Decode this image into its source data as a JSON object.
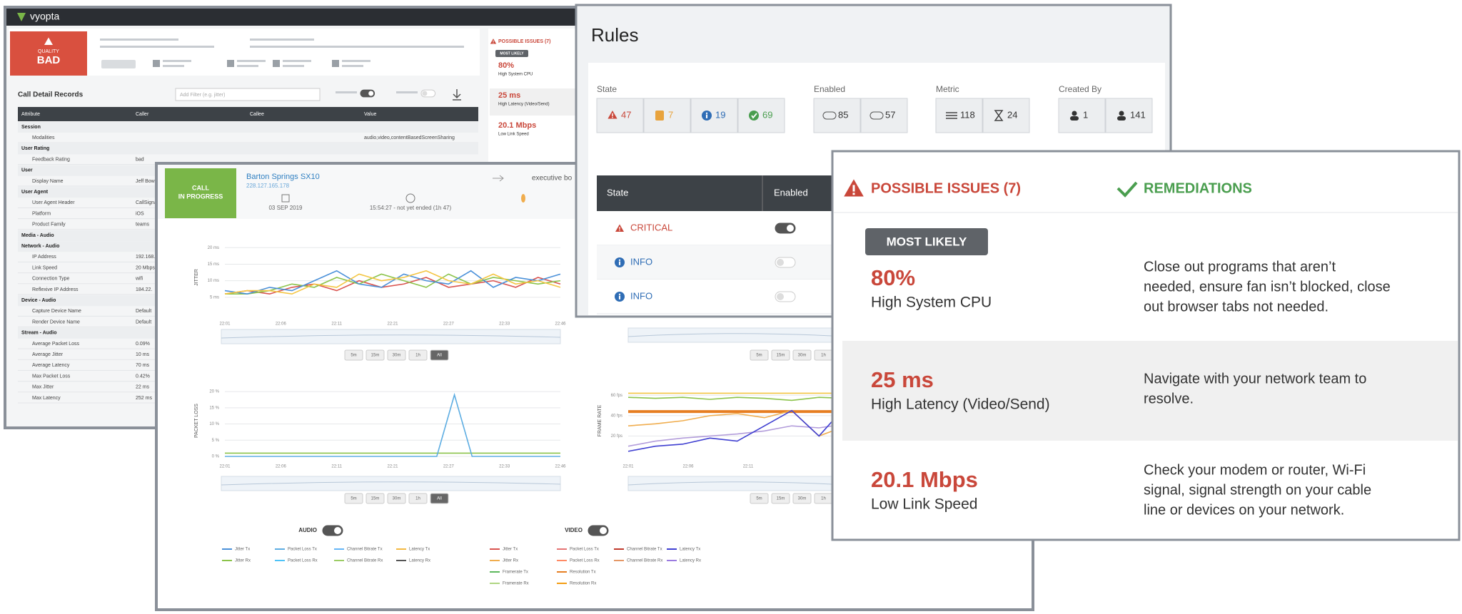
{
  "app": {
    "brand": "vyopta"
  },
  "quality": {
    "label": "QUALITY",
    "value": "BAD"
  },
  "call_detail": {
    "title": "Call Detail Records",
    "filter": "Add Filter (e.g. jitter)",
    "columns": [
      "Attribute",
      "Caller",
      "Callee",
      "Value"
    ],
    "sections": [
      {
        "name": "Session",
        "rows": [
          {
            "attr": "Modalities",
            "value": "audio,video,contentBasedScreenSharing"
          }
        ]
      },
      {
        "name": "User Rating",
        "rows": [
          {
            "attr": "Feedback Rating",
            "caller": "bad"
          }
        ]
      },
      {
        "name": "User",
        "rows": [
          {
            "attr": "Display Name",
            "caller": "Jeff Bow"
          }
        ]
      },
      {
        "name": "User Agent",
        "rows": [
          {
            "attr": "User Agent Header",
            "caller": "CallSignal"
          },
          {
            "attr": "Platform",
            "caller": "iOS"
          },
          {
            "attr": "Product Family",
            "caller": "teams"
          }
        ]
      },
      {
        "name": "Media - Audio",
        "rows": []
      },
      {
        "name": "Network - Audio",
        "rows": [
          {
            "attr": "IP Address",
            "caller": "192.168."
          },
          {
            "attr": "Link Speed",
            "caller": "20 Mbps"
          },
          {
            "attr": "Connection Type",
            "caller": "wifi"
          },
          {
            "attr": "Reflexive IP Address",
            "caller": "184.22."
          }
        ]
      },
      {
        "name": "Device - Audio",
        "rows": [
          {
            "attr": "Capture Device Name",
            "caller": "Default"
          },
          {
            "attr": "Render Device Name",
            "caller": "Default"
          }
        ]
      },
      {
        "name": "Stream - Audio",
        "rows": [
          {
            "attr": "Average Packet Loss",
            "caller": "0.09%"
          },
          {
            "attr": "Average Jitter",
            "caller": "10 ms"
          },
          {
            "attr": "Average Latency",
            "caller": "70 ms"
          },
          {
            "attr": "Max Packet Loss",
            "caller": "0.42%"
          },
          {
            "attr": "Max Jitter",
            "caller": "22 ms"
          },
          {
            "attr": "Max Latency",
            "caller": "252 ms"
          }
        ]
      }
    ]
  },
  "call": {
    "status": [
      "CALL",
      "IN PROGRESS"
    ],
    "room": "Barton Springs SX10",
    "ip": "228.127.165.178",
    "date": "03 SEP 2019",
    "time": "15:54:27 - not yet ended (1h 47)",
    "participant": "executive bo"
  },
  "ranges": [
    "5m",
    "15m",
    "30m",
    "1h",
    "All"
  ],
  "charts": [
    {
      "y_label": "JITTER",
      "ylim": [
        0,
        22
      ],
      "yticks": [
        {
          "value": 5,
          "label": "5 ms"
        },
        {
          "value": 10,
          "label": "10 ms"
        },
        {
          "value": 15,
          "label": "15 ms"
        },
        {
          "value": 20,
          "label": "20 ms"
        }
      ],
      "xlabels": [
        "22:01",
        "22:06",
        "22:11",
        "22:21",
        "22:27",
        "22:33",
        "22:46"
      ],
      "series": [
        {
          "color": "#d9534f",
          "values": [
            6,
            7,
            6,
            8,
            9,
            7,
            10,
            8,
            9,
            11,
            8,
            9,
            10,
            8,
            11,
            9
          ]
        },
        {
          "color": "#8bc34a",
          "values": [
            6,
            6,
            7,
            9,
            8,
            11,
            9,
            12,
            10,
            8,
            12,
            9,
            11,
            10,
            9,
            10
          ]
        },
        {
          "color": "#4a90d9",
          "values": [
            7,
            6,
            8,
            7,
            10,
            13,
            9,
            8,
            12,
            10,
            9,
            13,
            8,
            11,
            10,
            12
          ]
        },
        {
          "color": "#f4c542",
          "values": [
            6,
            7,
            7,
            6,
            9,
            8,
            12,
            10,
            11,
            13,
            10,
            9,
            12,
            9,
            10,
            8
          ]
        }
      ]
    },
    {
      "y_label": "PACKET LOSS",
      "ylim": [
        0,
        22
      ],
      "yticks": [
        {
          "value": 0,
          "label": "0 %"
        },
        {
          "value": 5,
          "label": "5 %"
        },
        {
          "value": 10,
          "label": "10 %"
        },
        {
          "value": 15,
          "label": "15 %"
        },
        {
          "value": 20,
          "label": "20 %"
        }
      ],
      "xlabels": [
        "22:01",
        "22:06",
        "22:11",
        "22:21",
        "22:27",
        "22:33",
        "22:46"
      ],
      "series": [
        {
          "color": "#8bc34a",
          "values": [
            1,
            1,
            1,
            1,
            1,
            1,
            1,
            1,
            1,
            1
          ]
        },
        {
          "color": "#5dade2",
          "values": [
            0,
            0,
            0,
            0,
            0,
            0,
            0,
            0,
            0,
            0,
            0,
            0,
            0,
            19,
            0,
            0,
            0,
            0,
            0,
            0
          ]
        }
      ]
    },
    {
      "y_label": "FRAME RATE",
      "ylim": [
        0,
        70
      ],
      "yticks": [
        {
          "value": 20,
          "label": "20 fps"
        },
        {
          "value": 40,
          "label": "40 fps"
        },
        {
          "value": 60,
          "label": "60 fps"
        }
      ],
      "xlabels": [
        "22:01",
        "22:06",
        "22:11"
      ],
      "series": [
        {
          "color": "#f4c542",
          "values": [
            62,
            62,
            62,
            62,
            62,
            62,
            62,
            62,
            62,
            62,
            62,
            62
          ]
        },
        {
          "color": "#8bc34a",
          "values": [
            58,
            57,
            58,
            56,
            58,
            57,
            55,
            58,
            57,
            56,
            55,
            57
          ]
        },
        {
          "color": "#e67e22",
          "values": [
            44,
            44,
            44,
            44,
            44,
            44,
            44,
            44,
            44,
            44,
            44,
            44
          ]
        },
        {
          "color": "#f0ad4e",
          "values": [
            30,
            32,
            35,
            40,
            42,
            38,
            45,
            20,
            30,
            40,
            50,
            52
          ]
        },
        {
          "color": "#b39ddb",
          "values": [
            10,
            15,
            18,
            20,
            22,
            25,
            30,
            28,
            32,
            35,
            38,
            40
          ]
        },
        {
          "color": "#3f3fd1",
          "values": [
            5,
            10,
            12,
            18,
            15,
            30,
            45,
            20,
            50,
            40,
            35,
            48
          ]
        }
      ]
    }
  ],
  "toggles": [
    "AUDIO",
    "VIDEO"
  ],
  "legends": {
    "audio": [
      [
        {
          "name": "Jitter Tx",
          "color": "#4a90d9"
        },
        {
          "name": "Jitter Rx",
          "color": "#8bc34a"
        }
      ],
      [
        {
          "name": "Packet Loss Tx",
          "color": "#5dade2"
        },
        {
          "name": "Packet Loss Rx",
          "color": "#4fc3f7"
        }
      ],
      [
        {
          "name": "Channel Bitrate Tx",
          "color": "#64b5f6"
        },
        {
          "name": "Channel Bitrate Rx",
          "color": "#9ccc65"
        }
      ],
      [
        {
          "name": "Latency Tx",
          "color": "#f4b942"
        },
        {
          "name": "Latency Rx",
          "color": "#555555"
        }
      ]
    ],
    "video": [
      [
        {
          "name": "Jitter Tx",
          "color": "#d9534f"
        },
        {
          "name": "Jitter Rx",
          "color": "#f0ad4e"
        },
        {
          "name": "Framerate Tx",
          "color": "#5cb85c"
        },
        {
          "name": "Framerate Rx",
          "color": "#aed581"
        }
      ],
      [
        {
          "name": "Packet Loss Tx",
          "color": "#e57373"
        },
        {
          "name": "Packet Loss Rx",
          "color": "#ff8a65"
        },
        {
          "name": "Resolution Tx",
          "color": "#e67e22"
        },
        {
          "name": "Resolution Rx",
          "color": "#f39c12"
        }
      ],
      [
        {
          "name": "Channel Bitrate Tx",
          "color": "#c0392b"
        },
        {
          "name": "Channel Bitrate Rx",
          "color": "#e59866"
        }
      ],
      [
        {
          "name": "Latency Tx",
          "color": "#3f3fd1"
        },
        {
          "name": "Latency Rx",
          "color": "#9b7be0"
        }
      ]
    ]
  },
  "rules": {
    "title": "Rules",
    "filters": [
      {
        "label": "State",
        "items": [
          {
            "count": 47,
            "color": "#c9473a"
          },
          {
            "count": 7,
            "color": "#e8a33d"
          },
          {
            "count": 19,
            "color": "#2f6db5"
          },
          {
            "count": 69,
            "color": "#4a9e4f"
          }
        ]
      },
      {
        "label": "Enabled",
        "items": [
          {
            "count": 85,
            "color": "#333333"
          },
          {
            "count": 57,
            "color": "#333333"
          }
        ]
      },
      {
        "label": "Metric",
        "items": [
          {
            "count": 118,
            "color": "#333333"
          },
          {
            "count": 24,
            "color": "#333333"
          }
        ]
      },
      {
        "label": "Created By",
        "items": [
          {
            "count": 1,
            "color": "#333333"
          },
          {
            "count": 141,
            "color": "#333333"
          }
        ]
      }
    ],
    "columns": [
      "State",
      "Enabled"
    ],
    "rows": [
      {
        "state": "CRITICAL",
        "color": "#c9473a",
        "enabled": true
      },
      {
        "state": "INFO",
        "color": "#2f6db5",
        "enabled": false
      },
      {
        "state": "INFO",
        "color": "#2f6db5",
        "enabled": false
      }
    ]
  },
  "issues": {
    "title": "POSSIBLE ISSUES (7)",
    "remediations_title": "REMEDIATIONS",
    "badge": "MOST LIKELY",
    "items": [
      {
        "value": "80%",
        "name": "High System CPU",
        "remediation": [
          "Close out programs that aren’t",
          "needed, ensure fan isn’t blocked, close",
          "out browser tabs not needed."
        ]
      },
      {
        "value": "25 ms",
        "name": "High Latency (Video/Send)",
        "remediation": [
          "Navigate with your network team to",
          "resolve."
        ]
      },
      {
        "value": "20.1 Mbps",
        "name": "Low Link Speed",
        "remediation": [
          "Check your modem or router, Wi-Fi",
          "signal, signal strength on your cable",
          "line or devices on your network."
        ]
      }
    ]
  }
}
